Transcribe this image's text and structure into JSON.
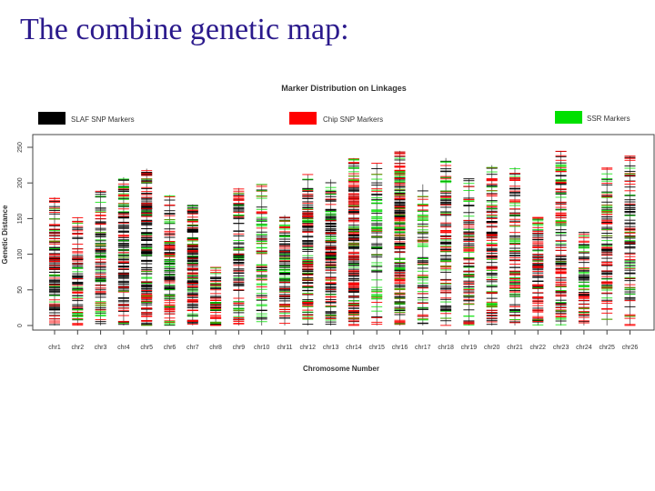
{
  "slide": {
    "title": "The combine genetic map:"
  },
  "chart_data": {
    "type": "scatter",
    "title": "Marker Distribution on Linkages",
    "xlabel": "Chromosome Number",
    "ylabel": "Genetic Distance",
    "ylim": [
      0,
      250
    ],
    "yticks": [
      "0",
      "50",
      "100",
      "150",
      "200",
      "250"
    ],
    "grid": false,
    "legend_position": "top",
    "categories": [
      "chr1",
      "chr2",
      "chr3",
      "chr4",
      "chr5",
      "chr6",
      "chr7",
      "chr8",
      "chr9",
      "chr10",
      "chr11",
      "chr12",
      "chr13",
      "chr14",
      "chr15",
      "chr16",
      "chr17",
      "chr18",
      "chr19",
      "chr20",
      "chr21",
      "chr22",
      "chr23",
      "chr24",
      "chr25",
      "chr26"
    ],
    "chromosome_length": [
      180,
      152,
      190,
      208,
      220,
      183,
      170,
      82,
      193,
      198,
      155,
      212,
      205,
      235,
      228,
      245,
      198,
      235,
      206,
      225,
      222,
      152,
      245,
      132,
      222,
      238
    ],
    "series": [
      {
        "name": "SLAF SNP Markers",
        "color": "#000000",
        "density": [
          70,
          45,
          55,
          90,
          120,
          55,
          95,
          30,
          55,
          25,
          60,
          80,
          100,
          110,
          30,
          100,
          30,
          60,
          50,
          60,
          50,
          50,
          60,
          35,
          45,
          60
        ]
      },
      {
        "name": "Chip SNP Markers",
        "color": "#ff0000",
        "density": [
          35,
          30,
          25,
          30,
          40,
          35,
          40,
          25,
          30,
          20,
          25,
          40,
          30,
          70,
          15,
          75,
          20,
          35,
          30,
          45,
          40,
          45,
          55,
          25,
          40,
          30
        ]
      },
      {
        "name": "SSR Markers",
        "color": "#00e000",
        "density": [
          10,
          15,
          20,
          15,
          15,
          25,
          15,
          10,
          15,
          35,
          20,
          20,
          20,
          20,
          40,
          40,
          30,
          20,
          20,
          20,
          20,
          10,
          25,
          15,
          20,
          15
        ]
      }
    ]
  }
}
